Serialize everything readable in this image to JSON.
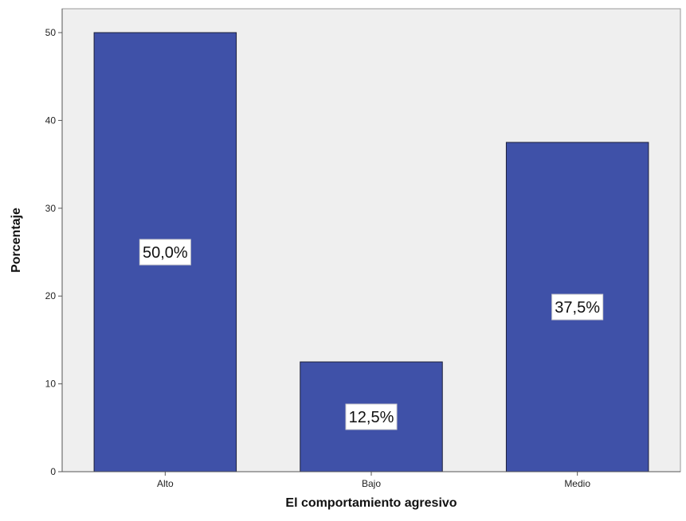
{
  "chart_data": {
    "type": "bar",
    "categories": [
      "Alto",
      "Bajo",
      "Medio"
    ],
    "values": [
      50.0,
      12.5,
      37.5
    ],
    "data_labels": [
      "50,0%",
      "12,5%",
      "37,5%"
    ],
    "title": "",
    "xlabel": "El comportamiento agresivo",
    "ylabel": "Porcentaje",
    "ylim": [
      0,
      50
    ],
    "yticks": [
      0,
      10,
      20,
      30,
      40,
      50
    ],
    "ytick_labels": [
      "0",
      "10",
      "20",
      "30",
      "40",
      "50"
    ],
    "grid": false,
    "legend": "none",
    "colors": {
      "bar": "#3f51a8",
      "bar_edge": "#1b1f3a",
      "plot_background": "#efefef",
      "label_box": "#ffffff"
    }
  }
}
